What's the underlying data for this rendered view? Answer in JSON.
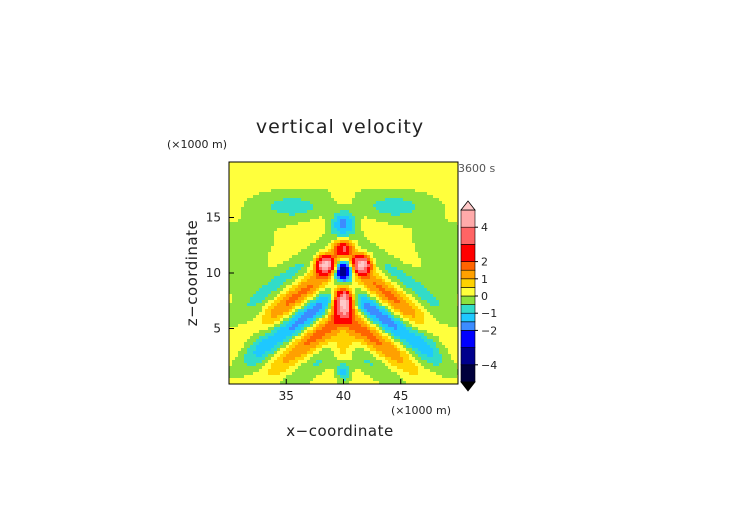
{
  "chart_data": {
    "type": "heatmap",
    "title": "vertical velocity",
    "xlabel": "x−coordinate",
    "ylabel": "z−coordinate",
    "x_unit": "(×1000 m)",
    "y_unit": "(×1000 m)",
    "time_label": "3600 s",
    "xlim": [
      30,
      50
    ],
    "ylim": [
      0,
      20
    ],
    "x_ticks": [
      "35",
      "40",
      "45"
    ],
    "y_ticks": [
      "5",
      "10",
      "15"
    ],
    "grid": false,
    "colorbar": {
      "range": [
        -5,
        5
      ],
      "tick_labels": [
        "4",
        "2",
        "1",
        "0",
        "−1",
        "−2",
        "−4"
      ],
      "levels": [
        {
          "lo": -5,
          "hi": -4,
          "color": "#00003c"
        },
        {
          "lo": -4,
          "hi": -3,
          "color": "#00008c"
        },
        {
          "lo": -3,
          "hi": -2,
          "color": "#0000ff"
        },
        {
          "lo": -2,
          "hi": -1.5,
          "color": "#3c8cff"
        },
        {
          "lo": -1.5,
          "hi": -1,
          "color": "#1ec8ff"
        },
        {
          "lo": -1,
          "hi": -0.5,
          "color": "#32dcc8"
        },
        {
          "lo": -0.5,
          "hi": 0,
          "color": "#8ce13c"
        },
        {
          "lo": 0,
          "hi": 0.5,
          "color": "#ffff3c"
        },
        {
          "lo": 0.5,
          "hi": 1,
          "color": "#ffd200"
        },
        {
          "lo": 1,
          "hi": 1.5,
          "color": "#ffa000"
        },
        {
          "lo": 1.5,
          "hi": 2,
          "color": "#ff6400"
        },
        {
          "lo": 2,
          "hi": 3,
          "color": "#ff0000"
        },
        {
          "lo": 3,
          "hi": 4,
          "color": "#ff6464"
        },
        {
          "lo": 4,
          "hi": 5,
          "color": "#ffaaaa"
        }
      ],
      "over_color": "#ffc8c8",
      "under_color": "#000000"
    },
    "field_features": [
      {
        "x": 40,
        "z": 7.5,
        "w": 3.5,
        "note": "central updraft maximum"
      },
      {
        "x": 40,
        "z": 10.2,
        "w": -3,
        "note": "central downdraft"
      },
      {
        "x": 40,
        "z": 12.2,
        "w": 2.5,
        "note": "upper updraft"
      },
      {
        "x": 40,
        "z": 14.5,
        "w": -1.2,
        "note": "top downdraft"
      },
      {
        "x": 38.3,
        "z": 10.8,
        "w": 4.5,
        "note": "left upper updraft"
      },
      {
        "x": 41.7,
        "z": 10.8,
        "w": 4.5,
        "note": "right upper updraft"
      },
      {
        "x": 40,
        "z": 1.2,
        "w": -1.5,
        "note": "surface downdraft"
      }
    ]
  }
}
